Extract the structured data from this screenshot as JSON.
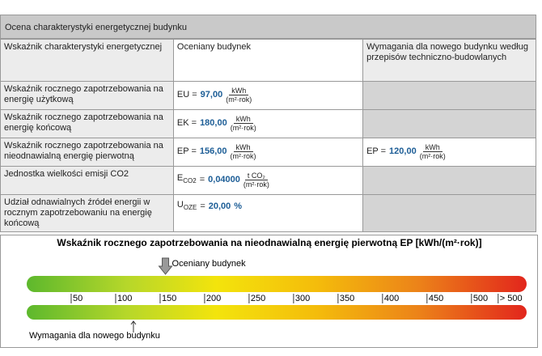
{
  "header": {
    "title": "Ocena charakterystyki energetycznej budynku"
  },
  "table": {
    "columns": [
      "Wskaźnik charakterystyki energetycznej",
      "Oceniany budynek",
      "Wymagania dla nowego budynku według przepisów techniczno-budowlanych"
    ],
    "rows": [
      {
        "label": "Wskaźnik rocznego zapotrzebowania na energię użytkową",
        "symbol": "EU =",
        "value": "97,00",
        "unit_num": "kWh",
        "unit_den": "(m²·rok)"
      },
      {
        "label": "Wskaźnik rocznego zapotrzebowania na energię końcową",
        "symbol": "EK =",
        "value": "180,00",
        "unit_num": "kWh",
        "unit_den": "(m²·rok)"
      },
      {
        "label": "Wskaźnik rocznego zapotrzebowania na nieodnawialną energię pierwotną",
        "symbol": "EP =",
        "value": "156,00",
        "unit_num": "kWh",
        "unit_den": "(m²·rok)",
        "requirement": {
          "symbol": "EP =",
          "value": "120,00",
          "unit_num": "kWh",
          "unit_den": "(m²·rok)"
        }
      },
      {
        "label": "Jednostka wielkości emisji CO2",
        "symbol": "E",
        "sub": "CO2",
        "eq": "=",
        "value": "0,04000",
        "unit_num": "t CO₂",
        "unit_den": "(m²·rok)"
      },
      {
        "label": "Udział odnawialnych źródeł energii w rocznym zapotrzebowaniu na energię końcową",
        "symbol": "U",
        "sub": "OZE",
        "eq": "=",
        "value": "20,00",
        "unit": "%"
      }
    ]
  },
  "scale": {
    "title": "Wskaźnik rocznego zapotrzebowania na nieodnawialną energię pierwotną EP [kWh/(m²·rok)]",
    "range": [
      0,
      562
    ],
    "ticks": [
      50,
      100,
      150,
      200,
      250,
      300,
      350,
      400,
      450,
      500,
      {
        "value": 530,
        "label": "> 500"
      }
    ],
    "markers": [
      {
        "label": "Oceniany budynek",
        "value": 156
      },
      {
        "label": "Wymagania dla nowego budynku",
        "value": 120
      }
    ]
  }
}
